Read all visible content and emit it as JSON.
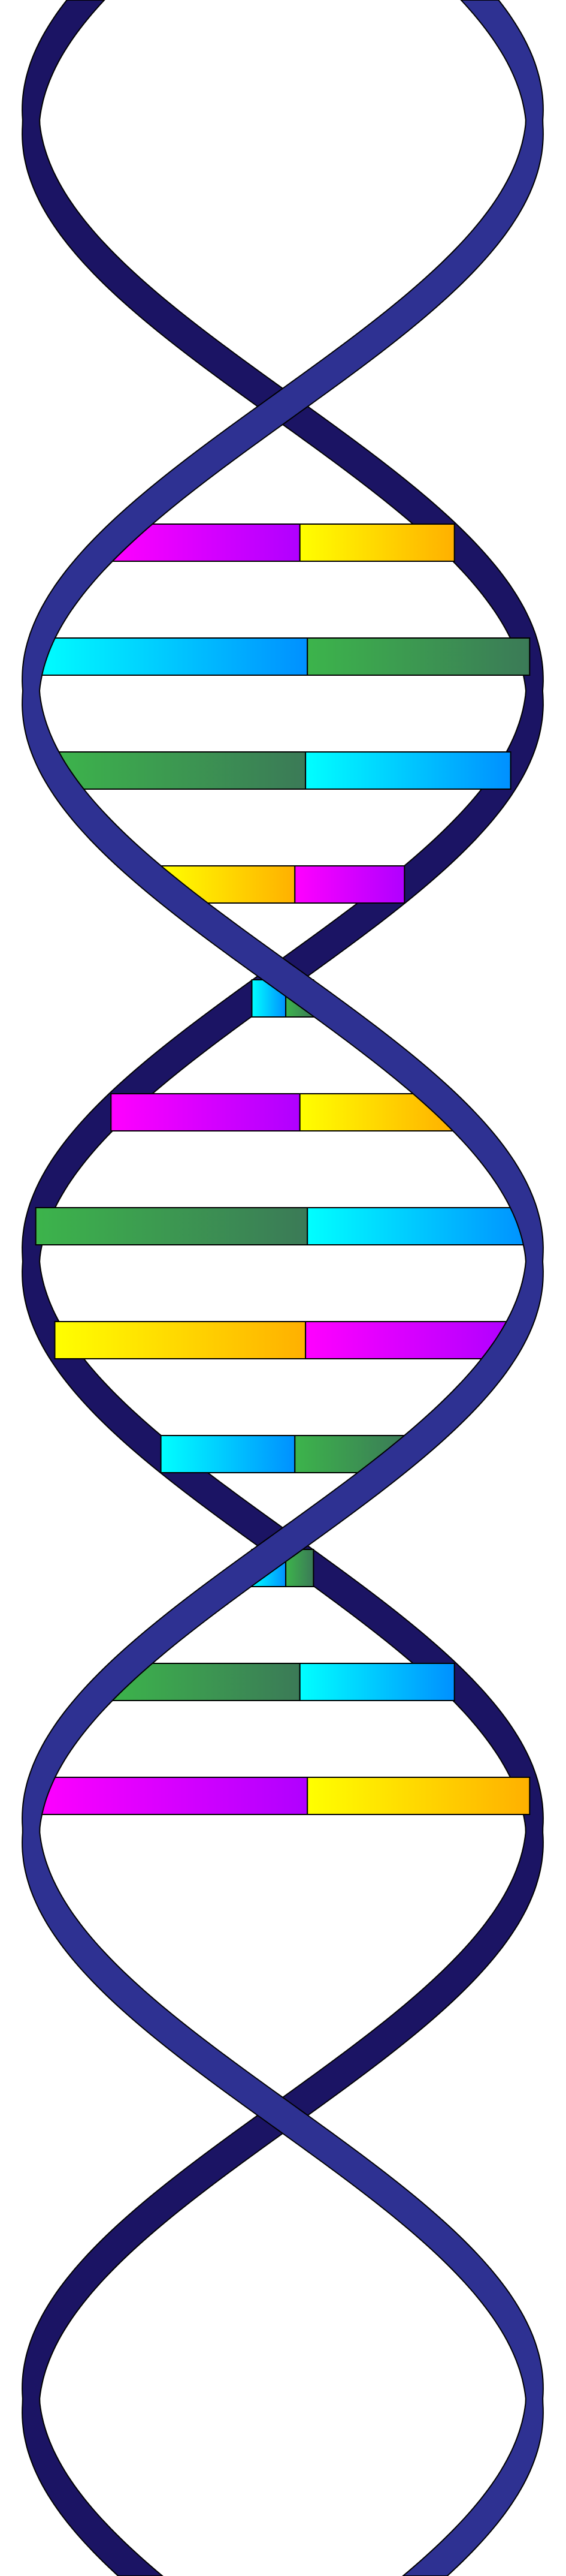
{
  "diagram": {
    "subject": "dna-double-helix",
    "colors": {
      "background": "#ffffff",
      "front_strand": "#2e3192",
      "back_strand": "#1b1464",
      "outline": "#000000",
      "magenta": [
        "#ff00ff",
        "#b000ff"
      ],
      "yellow": [
        "#ffff00",
        "#ffb000"
      ],
      "cyan": [
        "#00ffff",
        "#0090ff"
      ],
      "green": [
        "#3cb44b",
        "#3b7a57"
      ]
    },
    "base_pairs": [
      [
        "magenta",
        "yellow"
      ],
      [
        "cyan",
        "green"
      ],
      [
        "green",
        "cyan"
      ],
      [
        "yellow",
        "magenta"
      ],
      [
        "cyan",
        "green"
      ],
      [
        "magenta",
        "yellow"
      ],
      [
        "green",
        "cyan"
      ],
      [
        "yellow",
        "magenta"
      ],
      [
        "cyan",
        "green"
      ],
      [
        "cyan",
        "green"
      ],
      [
        "green",
        "cyan"
      ],
      [
        "magenta",
        "yellow"
      ]
    ]
  }
}
